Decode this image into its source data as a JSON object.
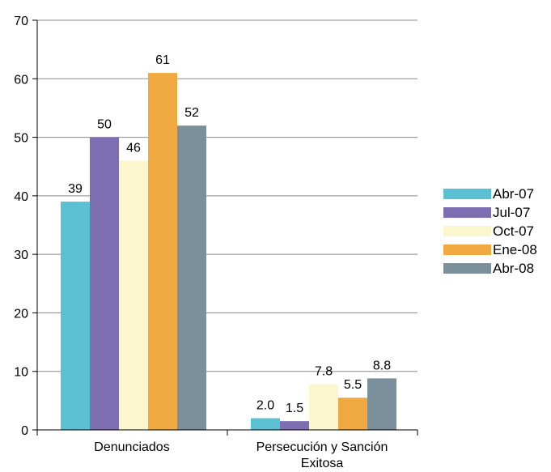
{
  "chart_data": {
    "type": "bar",
    "categories": [
      "Denunciados",
      "Persecución y Sanción Exitosa"
    ],
    "category_lines": [
      [
        "Denunciados"
      ],
      [
        "Persecución y Sanción",
        "Exitosa"
      ]
    ],
    "series": [
      {
        "name": "Abr-07",
        "color": "#5bc0d2",
        "values": [
          39,
          2.0
        ],
        "labels": [
          "39",
          "2.0"
        ]
      },
      {
        "name": "Jul-07",
        "color": "#7d6eb1",
        "values": [
          50,
          1.5
        ],
        "labels": [
          "50",
          "1.5"
        ]
      },
      {
        "name": "Oct-07",
        "color": "#fcf6cf",
        "values": [
          46,
          7.8
        ],
        "labels": [
          "46",
          "7.8"
        ]
      },
      {
        "name": "Ene-08",
        "color": "#f0a941",
        "values": [
          61,
          5.5
        ],
        "labels": [
          "61",
          "5.5"
        ]
      },
      {
        "name": "Abr-08",
        "color": "#7a909c",
        "values": [
          52,
          8.8
        ],
        "labels": [
          "52",
          "8.8"
        ]
      }
    ],
    "yticks": [
      0,
      10,
      20,
      30,
      40,
      50,
      60,
      70
    ],
    "ylim": [
      0,
      70
    ],
    "grid": true,
    "legend": "right",
    "title": "",
    "xlabel": "",
    "ylabel": ""
  }
}
